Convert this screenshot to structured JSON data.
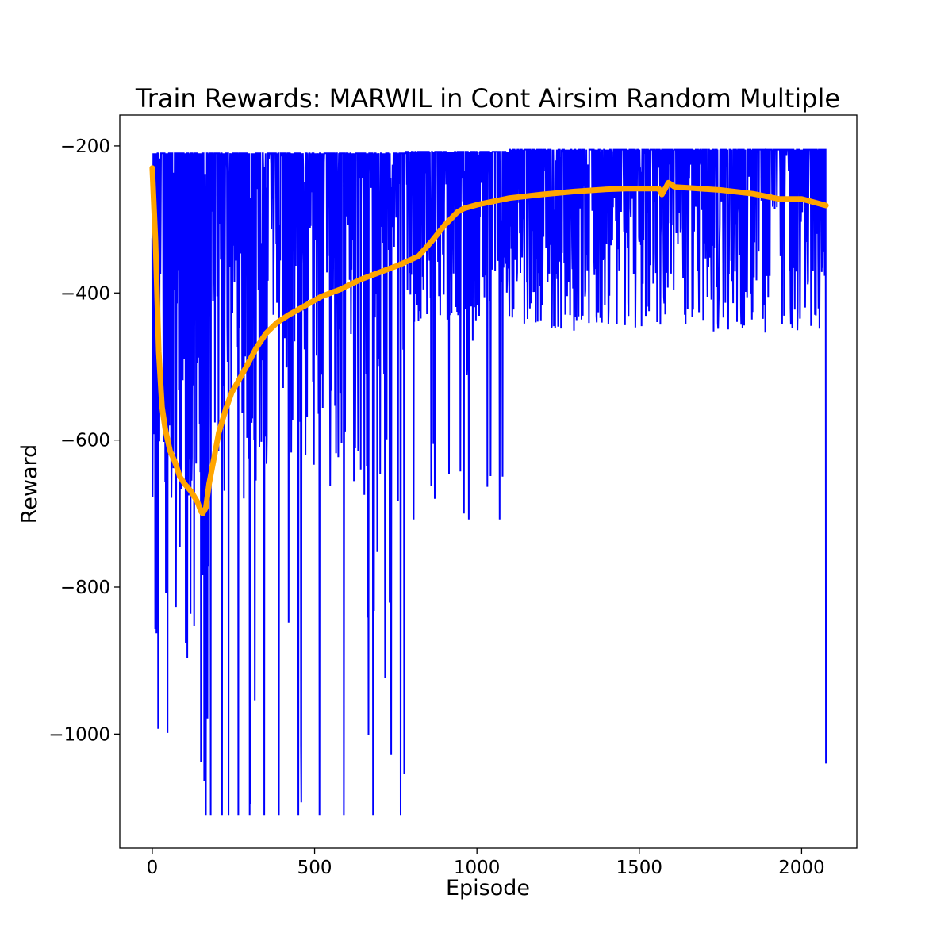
{
  "chart_data": {
    "type": "line",
    "title": "Train Rewards: MARWIL in Cont Airsim Random Multiple",
    "xlabel": "Episode",
    "ylabel": "Reward",
    "xlim": [
      -100,
      2170
    ],
    "ylim": [
      -1155,
      -158
    ],
    "xticks": [
      0,
      500,
      1000,
      1500,
      2000
    ],
    "yticks": [
      -200,
      -400,
      -600,
      -800,
      -1000
    ],
    "xtick_labels": [
      "0",
      "500",
      "1000",
      "1500",
      "2000"
    ],
    "ytick_labels": [
      "−200",
      "−400",
      "−600",
      "−800",
      "−1000"
    ],
    "grid": false,
    "legend": "none",
    "series": [
      {
        "color": "#0000ff",
        "line_width": 2,
        "values_description": "raw episode rewards (approximate envelope)",
        "phases": [
          {
            "x_start": 0,
            "x_end": 180,
            "high": -210,
            "low_floor": -680,
            "deep_low": -890,
            "spike_low": -1110
          },
          {
            "x_start": 180,
            "x_end": 780,
            "high": -210,
            "low_floor": -380,
            "deep_low": -680,
            "spike_low": -1110
          },
          {
            "x_start": 780,
            "x_end": 1100,
            "high": -208,
            "low_floor": -370,
            "deep_low": -440,
            "spike_low": -708
          },
          {
            "x_start": 1100,
            "x_end": 2075,
            "high": -205,
            "low_floor": -340,
            "deep_low": -440,
            "spike_low": -455
          }
        ],
        "final_point": {
          "x": 2075,
          "y": -1040
        },
        "spike_lows": [
          {
            "x": 165,
            "y": -1110
          },
          {
            "x": 180,
            "y": -1110
          },
          {
            "x": 215,
            "y": -1110
          },
          {
            "x": 235,
            "y": -1110
          },
          {
            "x": 265,
            "y": -1110
          },
          {
            "x": 300,
            "y": -1110
          },
          {
            "x": 345,
            "y": -1110
          },
          {
            "x": 390,
            "y": -1110
          },
          {
            "x": 450,
            "y": -1110
          },
          {
            "x": 515,
            "y": -1110
          },
          {
            "x": 590,
            "y": -1110
          },
          {
            "x": 680,
            "y": -1110
          },
          {
            "x": 765,
            "y": -1110
          },
          {
            "x": 1070,
            "y": -708
          },
          {
            "x": 975,
            "y": -708
          },
          {
            "x": 960,
            "y": -700
          },
          {
            "x": 805,
            "y": -708
          },
          {
            "x": 870,
            "y": -680
          }
        ]
      },
      {
        "color": "#ffa500",
        "line_width": 7,
        "x": [
          0,
          10,
          20,
          30,
          40,
          55,
          70,
          85,
          100,
          120,
          140,
          150,
          155,
          165,
          175,
          190,
          205,
          225,
          245,
          265,
          290,
          320,
          350,
          385,
          420,
          460,
          520,
          580,
          640,
          700,
          760,
          820,
          860,
          900,
          940,
          960,
          1000,
          1100,
          1200,
          1300,
          1400,
          1460,
          1500,
          1560,
          1570,
          1580,
          1590,
          1610,
          1650,
          1750,
          1850,
          1930,
          2000,
          2075
        ],
        "y": [
          -230,
          -330,
          -480,
          -555,
          -585,
          -615,
          -630,
          -650,
          -660,
          -670,
          -685,
          -697,
          -700,
          -692,
          -660,
          -625,
          -590,
          -560,
          -535,
          -520,
          -500,
          -475,
          -455,
          -440,
          -430,
          -420,
          -405,
          -395,
          -382,
          -372,
          -362,
          -350,
          -330,
          -308,
          -290,
          -285,
          -280,
          -271,
          -266,
          -262,
          -259,
          -258,
          -258,
          -258,
          -266,
          -258,
          -250,
          -256,
          -257,
          -260,
          -265,
          -272,
          -272,
          -281
        ]
      }
    ]
  }
}
